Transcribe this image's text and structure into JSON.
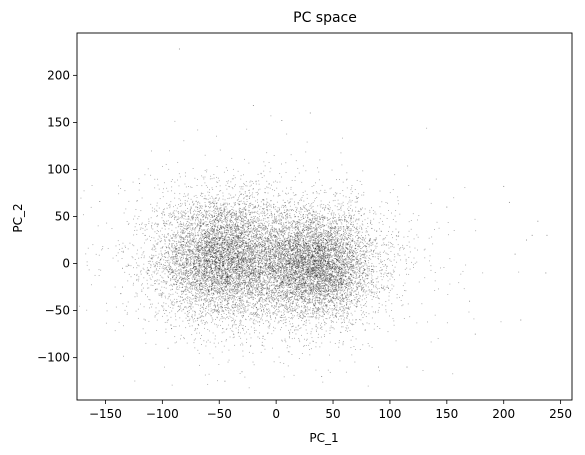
{
  "chart_data": {
    "type": "scatter",
    "title": "PC space",
    "xlabel": "PC_1",
    "ylabel": "PC_2",
    "xlim": [
      -175,
      260
    ],
    "ylim": [
      -145,
      245
    ],
    "xticks": [
      -150,
      -100,
      -50,
      0,
      50,
      100,
      150,
      200,
      250
    ],
    "yticks": [
      -100,
      -50,
      0,
      50,
      100,
      150,
      200
    ],
    "xtick_labels": [
      "−150",
      "−100",
      "−50",
      "0",
      "50",
      "100",
      "150",
      "200",
      "250"
    ],
    "ytick_labels": [
      "−100",
      "−50",
      "0",
      "50",
      "100",
      "150",
      "200"
    ],
    "grid": false,
    "legend": "none",
    "point_color": "#000000",
    "series": [
      {
        "clusters": [
          {
            "center": [
              -48,
              5
            ],
            "spread": [
              28,
              32
            ],
            "approx_points": 6000
          },
          {
            "center": [
              35,
              -2
            ],
            "spread": [
              26,
              28
            ],
            "approx_points": 6000
          },
          {
            "center": [
              -5,
              5
            ],
            "spread": [
              65,
              45
            ],
            "approx_points": 2500
          }
        ],
        "outliers": [
          [
            -155,
            66
          ],
          [
            -120,
            85
          ],
          [
            -135,
            -5
          ],
          [
            -135,
            -25
          ],
          [
            -115,
            -60
          ],
          [
            -95,
            -90
          ],
          [
            -85,
            228
          ],
          [
            -20,
            168
          ],
          [
            5,
            152
          ],
          [
            30,
            160
          ],
          [
            -30,
            -115
          ],
          [
            -45,
            -125
          ],
          [
            40,
            -120
          ],
          [
            90,
            -110
          ],
          [
            115,
            -110
          ],
          [
            150,
            60
          ],
          [
            170,
            -40
          ],
          [
            175,
            -75
          ],
          [
            200,
            82
          ],
          [
            205,
            65
          ],
          [
            210,
            10
          ],
          [
            215,
            -60
          ],
          [
            220,
            25
          ],
          [
            225,
            30
          ],
          [
            230,
            45
          ],
          [
            238,
            30
          ],
          [
            237,
            -10
          ]
        ]
      }
    ]
  }
}
